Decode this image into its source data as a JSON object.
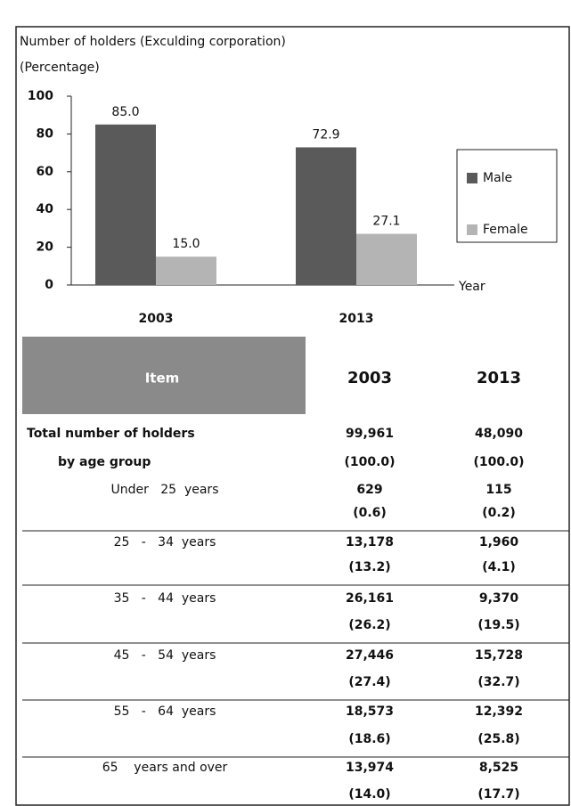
{
  "chart_data": {
    "type": "bar",
    "title": "Number of holders (Exculding corporation)",
    "subtitle": "(Percentage)",
    "x_label": "Year",
    "categories": [
      "2003",
      "2013"
    ],
    "series": [
      {
        "name": "Male",
        "color": "#5a5a5a",
        "values": [
          85.0,
          72.9
        ],
        "value_labels": [
          "85.0",
          "72.9"
        ]
      },
      {
        "name": "Female",
        "color": "#b4b4b4",
        "values": [
          15.0,
          27.1
        ],
        "value_labels": [
          "15.0",
          "27.1"
        ]
      }
    ],
    "ylim": [
      0,
      100
    ],
    "yticks": [
      0,
      20,
      40,
      60,
      80,
      100
    ],
    "legend": "right"
  },
  "table": {
    "header": [
      "Item",
      "2003",
      "2013"
    ],
    "rows": [
      {
        "label": "Total number of holders",
        "values": [
          "99,961",
          "48,090"
        ]
      },
      {
        "label": "by age group",
        "values": [
          "(100.0)",
          "(100.0)"
        ]
      },
      {
        "label": "Under   25  years",
        "values": [
          "629",
          "115"
        ]
      },
      {
        "values": [
          "(0.6)",
          "(0.2)"
        ]
      },
      {
        "label": "25   -   34  years",
        "values": [
          "13,178",
          "1,960"
        ]
      },
      {
        "values": [
          "(13.2)",
          "(4.1)"
        ]
      },
      {
        "label": "35   -   44  years",
        "values": [
          "26,161",
          "9,370"
        ]
      },
      {
        "values": [
          "(26.2)",
          "(19.5)"
        ]
      },
      {
        "label": "45   -   54  years",
        "values": [
          "27,446",
          "15,728"
        ]
      },
      {
        "values": [
          "(27.4)",
          "(32.7)"
        ]
      },
      {
        "label": "55   -   64  years",
        "values": [
          "18,573",
          "12,392"
        ]
      },
      {
        "values": [
          "(18.6)",
          "(25.8)"
        ]
      },
      {
        "label": "65    years and over",
        "values": [
          "13,974",
          "8,525"
        ]
      },
      {
        "values": [
          "(14.0)",
          "(17.7)"
        ]
      }
    ]
  }
}
